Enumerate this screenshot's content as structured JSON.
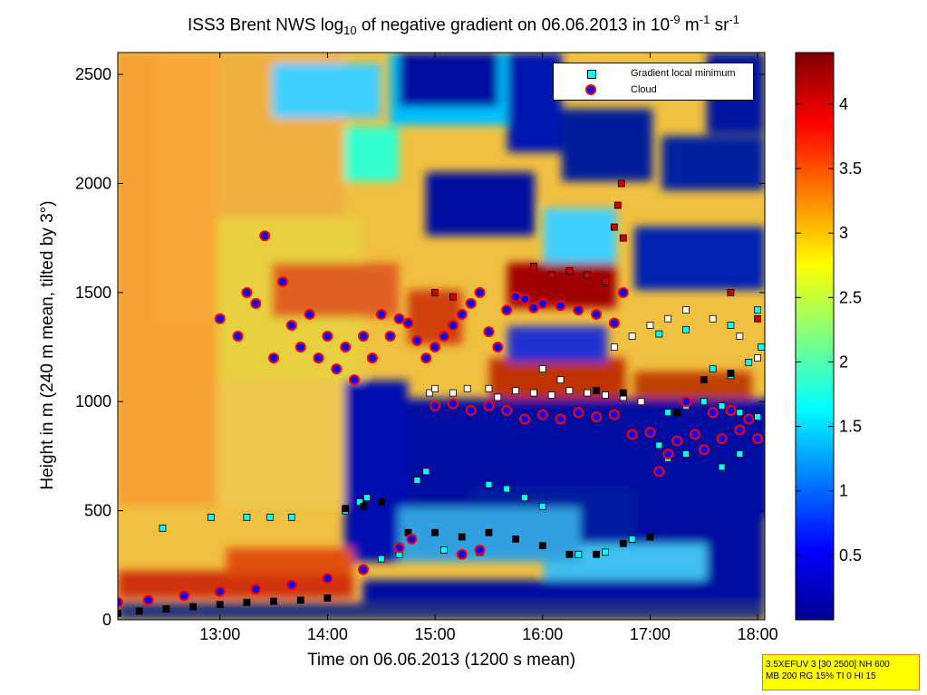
{
  "title": {
    "prefix": "ISS3 Brent NWS log",
    "sub10": "10",
    "mid": " of negative gradient on 06.06.2013 in 10",
    "exp1": "-9",
    "m": " m",
    "exp2": "-1",
    "sr": " sr",
    "exp3": "-1"
  },
  "info_box": {
    "line1": "3.5XEFUV 3 [30 2500] NH 600",
    "line2": "MB 200 RG 15% TI 0 HI 15"
  },
  "chart_data": {
    "type": "heatmap",
    "xlabel": "Time on 06.06.2013 (1200 s mean)",
    "ylabel": "Height in m (240 m mean, tilted by 3°)",
    "xlim": [
      "12:03",
      "18:04"
    ],
    "ylim": [
      0,
      2600
    ],
    "xticks": [
      "13:00",
      "14:00",
      "15:00",
      "16:00",
      "17:00",
      "18:00"
    ],
    "yticks": [
      0,
      500,
      1000,
      1500,
      2000,
      2500
    ],
    "colorbar": {
      "ticks": [
        0.5,
        1,
        1.5,
        2,
        2.5,
        3,
        3.5,
        4
      ],
      "range": [
        0,
        4.4
      ],
      "colormap": "jet"
    },
    "legend": {
      "position": "top-right",
      "entries": [
        "Gradient local minimum",
        "Cloud"
      ]
    },
    "series": [
      {
        "name": "Gradient local minimum",
        "marker": "square",
        "color": "#00ffff",
        "points": [
          [
            "12:28",
            420
          ],
          [
            "12:55",
            470
          ],
          [
            "13:15",
            470
          ],
          [
            "13:28",
            470
          ],
          [
            "13:40",
            470
          ],
          [
            "14:10",
            500
          ],
          [
            "14:18",
            540
          ],
          [
            "14:22",
            560
          ],
          [
            "14:50",
            640
          ],
          [
            "14:55",
            680
          ],
          [
            "15:30",
            620
          ],
          [
            "15:40",
            600
          ],
          [
            "15:50",
            560
          ],
          [
            "16:00",
            520
          ],
          [
            "14:30",
            280
          ],
          [
            "14:40",
            300
          ],
          [
            "15:05",
            320
          ],
          [
            "15:15",
            300
          ],
          [
            "15:25",
            310
          ],
          [
            "16:20",
            300
          ],
          [
            "16:35",
            310
          ],
          [
            "16:50",
            370
          ],
          [
            "17:00",
            380
          ],
          [
            "17:05",
            800
          ],
          [
            "17:10",
            740
          ],
          [
            "17:20",
            760
          ],
          [
            "17:30",
            780
          ],
          [
            "17:40",
            700
          ],
          [
            "17:50",
            760
          ],
          [
            "17:10",
            950
          ],
          [
            "17:20",
            980
          ],
          [
            "17:30",
            1000
          ],
          [
            "17:40",
            980
          ],
          [
            "17:50",
            950
          ],
          [
            "18:00",
            930
          ],
          [
            "17:35",
            1150
          ],
          [
            "17:45",
            1120
          ],
          [
            "17:55",
            1180
          ],
          [
            "18:02",
            1250
          ],
          [
            "17:05",
            1310
          ],
          [
            "17:20",
            1330
          ],
          [
            "17:45",
            1350
          ],
          [
            "18:00",
            1420
          ]
        ]
      },
      {
        "name": "Gradient local minimum (white, unlabelled)",
        "marker": "square",
        "color": "#ffffff",
        "points": [
          [
            "14:57",
            1040
          ],
          [
            "15:00",
            1060
          ],
          [
            "15:10",
            1040
          ],
          [
            "15:18",
            1060
          ],
          [
            "15:45",
            1050
          ],
          [
            "15:55",
            1040
          ],
          [
            "16:05",
            1030
          ],
          [
            "16:15",
            1050
          ],
          [
            "16:25",
            1040
          ],
          [
            "16:35",
            1030
          ],
          [
            "16:45",
            1020
          ],
          [
            "16:55",
            1000
          ],
          [
            "15:30",
            1060
          ],
          [
            "15:35",
            1020
          ],
          [
            "16:00",
            1150
          ],
          [
            "16:10",
            1100
          ],
          [
            "16:40",
            1250
          ],
          [
            "16:50",
            1300
          ],
          [
            "17:00",
            1350
          ],
          [
            "17:10",
            1380
          ],
          [
            "17:20",
            1420
          ],
          [
            "17:35",
            1380
          ],
          [
            "17:50",
            1300
          ],
          [
            "18:00",
            1200
          ]
        ]
      },
      {
        "name": "Gradient local minimum (black, unlabelled)",
        "marker": "square",
        "color": "#000000",
        "points": [
          [
            "12:03",
            30
          ],
          [
            "12:15",
            40
          ],
          [
            "12:30",
            50
          ],
          [
            "12:45",
            60
          ],
          [
            "13:00",
            70
          ],
          [
            "13:15",
            80
          ],
          [
            "13:30",
            85
          ],
          [
            "13:45",
            90
          ],
          [
            "14:00",
            100
          ],
          [
            "14:10",
            510
          ],
          [
            "14:20",
            520
          ],
          [
            "14:30",
            540
          ],
          [
            "14:45",
            400
          ],
          [
            "15:00",
            400
          ],
          [
            "15:15",
            380
          ],
          [
            "15:30",
            400
          ],
          [
            "15:45",
            370
          ],
          [
            "16:00",
            340
          ],
          [
            "16:15",
            300
          ],
          [
            "16:30",
            300
          ],
          [
            "16:45",
            350
          ],
          [
            "17:00",
            380
          ],
          [
            "17:15",
            950
          ],
          [
            "17:30",
            1100
          ],
          [
            "17:45",
            1130
          ],
          [
            "16:30",
            1050
          ],
          [
            "16:45",
            1040
          ]
        ]
      },
      {
        "name": "Gradient local minimum (red, unlabelled)",
        "marker": "square",
        "color": "#d00000",
        "points": [
          [
            "15:00",
            1500
          ],
          [
            "15:10",
            1480
          ],
          [
            "15:55",
            1620
          ],
          [
            "16:05",
            1580
          ],
          [
            "16:15",
            1600
          ],
          [
            "16:25",
            1580
          ],
          [
            "16:35",
            1550
          ],
          [
            "16:40",
            1800
          ],
          [
            "16:42",
            1900
          ],
          [
            "16:44",
            2000
          ],
          [
            "16:45",
            1750
          ],
          [
            "17:45",
            1500
          ],
          [
            "18:00",
            1380
          ]
        ]
      },
      {
        "name": "Cloud",
        "marker": "circle",
        "color": "#0000ff",
        "edge": "#ff0000",
        "points": [
          [
            "12:03",
            80
          ],
          [
            "12:20",
            90
          ],
          [
            "12:40",
            110
          ],
          [
            "13:00",
            130
          ],
          [
            "13:20",
            140
          ],
          [
            "13:40",
            160
          ],
          [
            "14:00",
            190
          ],
          [
            "14:20",
            230
          ],
          [
            "14:40",
            330
          ],
          [
            "14:47",
            370
          ],
          [
            "15:15",
            300
          ],
          [
            "15:25",
            320
          ],
          [
            "13:00",
            1380
          ],
          [
            "13:10",
            1300
          ],
          [
            "13:15",
            1500
          ],
          [
            "13:20",
            1450
          ],
          [
            "13:25",
            1760
          ],
          [
            "13:30",
            1200
          ],
          [
            "13:35",
            1550
          ],
          [
            "13:40",
            1350
          ],
          [
            "13:45",
            1250
          ],
          [
            "13:50",
            1400
          ],
          [
            "13:55",
            1200
          ],
          [
            "14:00",
            1300
          ],
          [
            "14:05",
            1150
          ],
          [
            "14:10",
            1250
          ],
          [
            "14:15",
            1100
          ],
          [
            "14:20",
            1300
          ],
          [
            "14:25",
            1200
          ],
          [
            "14:30",
            1400
          ],
          [
            "14:35",
            1300
          ],
          [
            "14:40",
            1380
          ],
          [
            "14:45",
            1360
          ],
          [
            "14:50",
            1280
          ],
          [
            "14:55",
            1200
          ],
          [
            "15:00",
            1250
          ],
          [
            "15:05",
            1300
          ],
          [
            "15:10",
            1350
          ],
          [
            "15:15",
            1400
          ],
          [
            "15:20",
            1450
          ],
          [
            "15:25",
            1500
          ],
          [
            "15:30",
            1320
          ],
          [
            "15:35",
            1250
          ],
          [
            "15:40",
            1420
          ],
          [
            "15:45",
            1480
          ],
          [
            "15:50",
            1470
          ],
          [
            "15:55",
            1430
          ],
          [
            "16:00",
            1450
          ],
          [
            "16:10",
            1440
          ],
          [
            "16:20",
            1420
          ],
          [
            "16:30",
            1400
          ],
          [
            "16:40",
            1360
          ],
          [
            "16:45",
            1500
          ],
          [
            "15:00",
            980
          ],
          [
            "15:10",
            990
          ],
          [
            "15:20",
            960
          ],
          [
            "15:30",
            980
          ],
          [
            "15:40",
            960
          ],
          [
            "15:50",
            920
          ],
          [
            "16:00",
            940
          ],
          [
            "16:10",
            920
          ],
          [
            "16:20",
            950
          ],
          [
            "16:30",
            930
          ],
          [
            "16:40",
            940
          ],
          [
            "16:50",
            850
          ],
          [
            "17:00",
            860
          ],
          [
            "17:05",
            680
          ],
          [
            "17:10",
            760
          ],
          [
            "17:15",
            820
          ],
          [
            "17:25",
            850
          ],
          [
            "17:30",
            780
          ],
          [
            "17:40",
            830
          ],
          [
            "17:50",
            870
          ],
          [
            "18:00",
            830
          ],
          [
            "17:20",
            1000
          ],
          [
            "17:35",
            950
          ],
          [
            "17:45",
            960
          ],
          [
            "17:55",
            920
          ]
        ]
      }
    ]
  }
}
